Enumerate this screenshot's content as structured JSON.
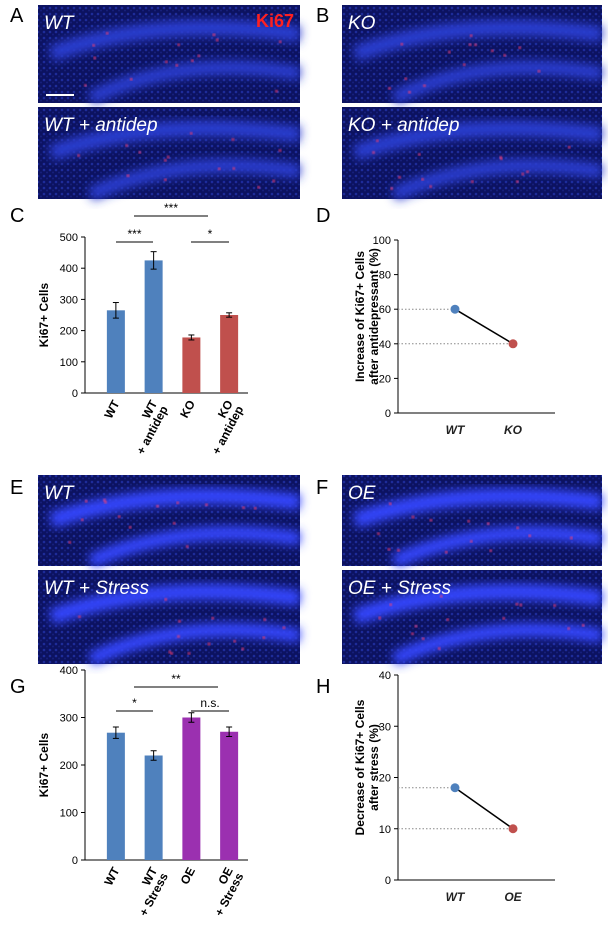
{
  "panels": {
    "letters": [
      "A",
      "B",
      "C",
      "D",
      "E",
      "F",
      "G",
      "H"
    ]
  },
  "images": [
    {
      "label": "WT",
      "marker": "Ki67"
    },
    {
      "label": "KO"
    },
    {
      "label": "WT + antidep"
    },
    {
      "label": "KO + antidep"
    },
    {
      "label": "WT"
    },
    {
      "label": "OE"
    },
    {
      "label": "WT + Stress"
    },
    {
      "label": "OE + Stress"
    }
  ],
  "chart_data": [
    {
      "type": "bar",
      "ylabel": "Ki67+ Cells",
      "categories": [
        "WT",
        "WT\n+ antidep",
        "KO",
        "KO\n+ antidep"
      ],
      "values": [
        265,
        425,
        178,
        250
      ],
      "errors": [
        25,
        28,
        8,
        7
      ],
      "colors": [
        "#4f81bd",
        "#4f81bd",
        "#c0504d",
        "#c0504d"
      ],
      "ylim": [
        0,
        500
      ],
      "yticks": [
        0,
        100,
        200,
        300,
        400,
        500
      ],
      "annotations": [
        "***",
        "***",
        "*"
      ]
    },
    {
      "type": "line",
      "ylabel": "Increase of Ki67+ Cells\nafter antidepressant (%)",
      "categories": [
        "WT",
        "KO"
      ],
      "values": [
        60,
        40
      ],
      "colors": [
        "#4f81bd",
        "#c0504d"
      ],
      "line_color": "#000000",
      "ylim": [
        0,
        100
      ],
      "yticks": [
        0,
        20,
        40,
        60,
        80,
        100
      ]
    },
    {
      "type": "bar",
      "ylabel": "Ki67+ Cells",
      "categories": [
        "WT",
        "WT\n+ Stress",
        "OE",
        "OE\n+ Stress"
      ],
      "values": [
        268,
        220,
        300,
        270
      ],
      "errors": [
        12,
        10,
        10,
        10
      ],
      "colors": [
        "#4f81bd",
        "#4f81bd",
        "#9b30b0",
        "#9b30b0"
      ],
      "ylim": [
        0,
        400
      ],
      "yticks": [
        0,
        100,
        200,
        300,
        400
      ],
      "annotations": [
        "**",
        "*",
        "n.s."
      ]
    },
    {
      "type": "line",
      "ylabel": "Decrease of Ki67+ Cells\nafter stress (%)",
      "categories": [
        "WT",
        "OE"
      ],
      "values": [
        18,
        10
      ],
      "colors": [
        "#4f81bd",
        "#c0504d"
      ],
      "line_color": "#000000",
      "ylim": [
        0,
        40
      ],
      "yticks": [
        0,
        10,
        20,
        30,
        40
      ]
    }
  ]
}
